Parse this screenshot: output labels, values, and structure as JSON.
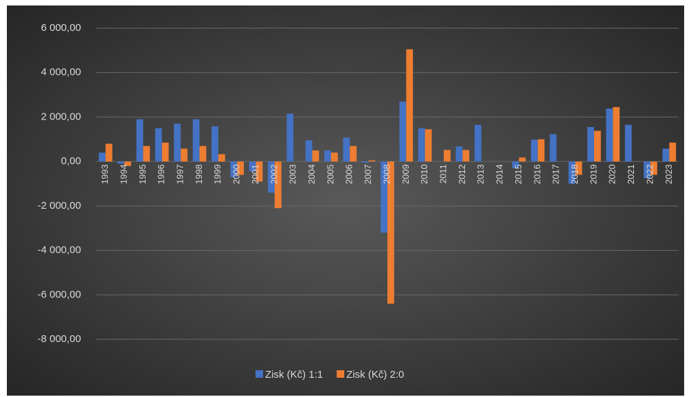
{
  "chart_data": {
    "type": "bar",
    "categories": [
      "1993",
      "1994",
      "1995",
      "1996",
      "1997",
      "1998",
      "1999",
      "2000",
      "2001",
      "2002",
      "2003",
      "2004",
      "2005",
      "2006",
      "2007",
      "2008",
      "2009",
      "2010",
      "2011",
      "2012",
      "2013",
      "2014",
      "2015",
      "2016",
      "2017",
      "2018",
      "2019",
      "2020",
      "2021",
      "2022",
      "2023"
    ],
    "series": [
      {
        "name": "Zisk (Kč) 1:1",
        "color": "#4472c4",
        "values": [
          400,
          -100,
          1900,
          1500,
          1700,
          1900,
          1580,
          -700,
          -450,
          -1400,
          2150,
          950,
          500,
          1080,
          -50,
          -3200,
          2700,
          1500,
          0,
          680,
          1650,
          0,
          -300,
          980,
          1230,
          -1000,
          1550,
          2380,
          1650,
          -750,
          580
        ]
      },
      {
        "name": "Zisk (Kč) 2:0",
        "color": "#ed7d31",
        "values": [
          800,
          -200,
          700,
          850,
          580,
          700,
          330,
          -600,
          -900,
          -2100,
          0,
          500,
          400,
          700,
          50,
          -6400,
          5050,
          1450,
          520,
          520,
          0,
          0,
          180,
          1000,
          0,
          -600,
          1380,
          2450,
          0,
          -600,
          850
        ]
      }
    ],
    "ylim": [
      -8000,
      6000
    ],
    "yticks": [
      {
        "value": -8000,
        "label": "-8 000,00"
      },
      {
        "value": -6000,
        "label": "-6 000,00"
      },
      {
        "value": -4000,
        "label": "-4 000,00"
      },
      {
        "value": -2000,
        "label": "-2 000,00"
      },
      {
        "value": 0,
        "label": "0,00"
      },
      {
        "value": 2000,
        "label": "2 000,00"
      },
      {
        "value": 4000,
        "label": "4 000,00"
      },
      {
        "value": 6000,
        "label": "6 000,00"
      }
    ],
    "grid": true,
    "legend": "bottom"
  }
}
